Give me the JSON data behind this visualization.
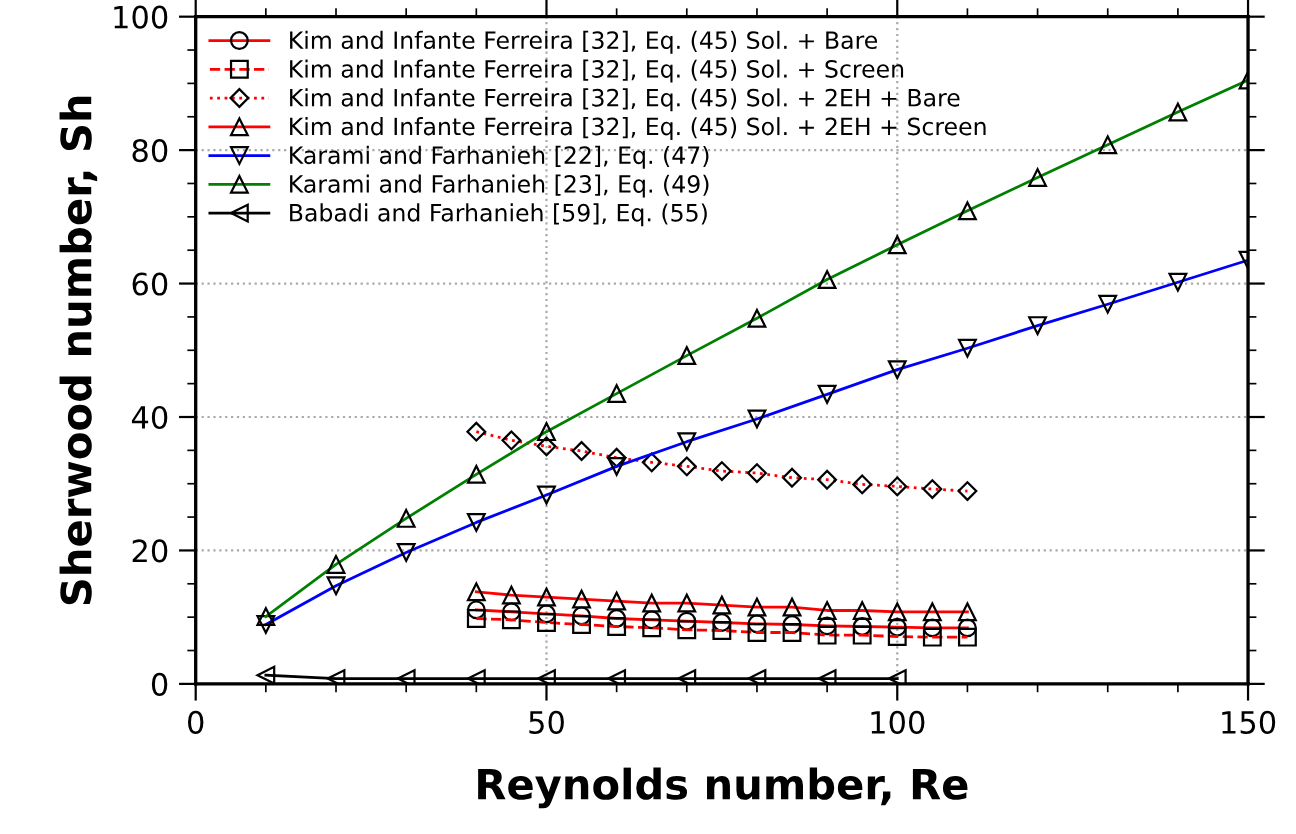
{
  "chart_data": {
    "type": "line",
    "xlabel": "Reynolds number, Re",
    "ylabel": "Sherwood number, Sh",
    "xlim": [
      0,
      150
    ],
    "ylim": [
      0,
      100
    ],
    "xticks": [
      0,
      50,
      100,
      150
    ],
    "yticks": [
      0,
      20,
      40,
      60,
      80,
      100
    ],
    "grid": true,
    "legend": "top left",
    "series": [
      {
        "name": "Kim and Infante Ferreira [32], Eq. (45) Sol. + Bare",
        "color": "#ff0000",
        "marker": "circle",
        "line_style": "solid",
        "x": [
          40,
          45,
          50,
          55,
          60,
          65,
          70,
          75,
          80,
          85,
          90,
          95,
          100,
          105,
          110
        ],
        "values": [
          11.1,
          10.8,
          10.5,
          10.2,
          9.8,
          9.6,
          9.4,
          9.2,
          9.0,
          8.9,
          8.7,
          8.6,
          8.5,
          8.4,
          8.4
        ]
      },
      {
        "name": "Kim and Infante Ferreira [32], Eq. (45) Sol. + Screen",
        "color": "#ff0000",
        "marker": "square",
        "line_style": "dashed",
        "x": [
          40,
          45,
          50,
          55,
          60,
          65,
          70,
          75,
          80,
          85,
          90,
          95,
          100,
          105,
          110
        ],
        "values": [
          9.8,
          9.6,
          9.2,
          8.9,
          8.6,
          8.4,
          8.1,
          8.0,
          7.7,
          7.7,
          7.3,
          7.3,
          7.1,
          7.0,
          7.0
        ]
      },
      {
        "name": "Kim and Infante Ferreira [32], Eq. (45) Sol. + 2EH + Bare",
        "color": "#ff0000",
        "marker": "diamond",
        "line_style": "dotted",
        "x": [
          40,
          45,
          50,
          55,
          60,
          65,
          70,
          75,
          80,
          85,
          90,
          95,
          100,
          105,
          110
        ],
        "values": [
          37.8,
          36.5,
          35.6,
          34.9,
          33.9,
          33.2,
          32.6,
          31.9,
          31.6,
          30.9,
          30.6,
          29.9,
          29.6,
          29.2,
          28.9
        ]
      },
      {
        "name": "Kim and Infante Ferreira [32], Eq. (45) Sol. + 2EH + Screen",
        "color": "#ff0000",
        "marker": "triangle",
        "line_style": "solid",
        "x": [
          40,
          45,
          50,
          55,
          60,
          65,
          70,
          75,
          80,
          85,
          90,
          95,
          100,
          105,
          110
        ],
        "values": [
          13.8,
          13.3,
          13.0,
          12.7,
          12.4,
          12.1,
          12.1,
          11.8,
          11.5,
          11.5,
          11.0,
          11.0,
          10.8,
          10.8,
          10.8
        ]
      },
      {
        "name": "Karami and Farhanieh [22], Eq. (47)",
        "color": "#0000ff",
        "marker": "triangle_down",
        "line_style": "solid",
        "x": [
          10,
          20,
          30,
          40,
          50,
          60,
          70,
          80,
          90,
          100,
          110,
          120,
          130,
          140,
          150
        ],
        "values": [
          8.9,
          14.7,
          19.7,
          24.2,
          28.3,
          32.6,
          36.3,
          39.7,
          43.4,
          47.1,
          50.3,
          53.7,
          56.9,
          60.2,
          63.5
        ]
      },
      {
        "name": "Karami and Farhanieh [23], Eq. (49)",
        "color": "#008000",
        "marker": "triangle",
        "line_style": "solid",
        "x": [
          10,
          20,
          30,
          40,
          50,
          60,
          70,
          80,
          90,
          100,
          110,
          120,
          130,
          140,
          150
        ],
        "values": [
          10.1,
          17.9,
          24.8,
          31.4,
          37.8,
          43.5,
          49.2,
          54.8,
          60.6,
          65.8,
          70.9,
          75.9,
          80.8,
          85.7,
          90.5
        ]
      },
      {
        "name": "Babadi and Farhanieh [59], Eq. (55)",
        "color": "#000000",
        "marker": "triangle_left",
        "line_style": "solid",
        "x": [
          10,
          20,
          30,
          40,
          50,
          60,
          70,
          80,
          90,
          100
        ],
        "values": [
          1.3,
          0.8,
          0.8,
          0.8,
          0.8,
          0.8,
          0.8,
          0.8,
          0.8,
          0.8
        ]
      }
    ]
  }
}
